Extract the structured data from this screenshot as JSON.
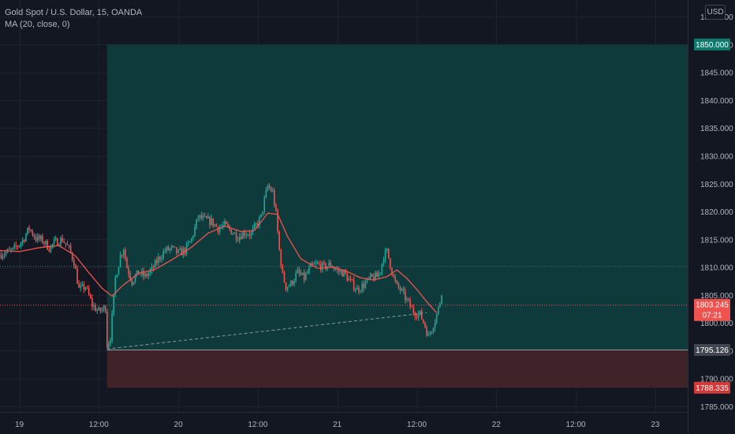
{
  "header": {
    "symbol_line": "Gold Spot / U.S. Dollar, 15, OANDA",
    "indicator_line": "MA (20, close, 0)",
    "currency_button": "USD"
  },
  "colors": {
    "background": "#131722",
    "grid": "#1e222d",
    "up": "#26a69a",
    "down": "#ef5350",
    "ma": "#ef5350",
    "profit_zone": "#0e3a3b",
    "stop_zone": "#3f2329",
    "target_badge": "#0e7a6d",
    "stop_badge": "#d23a3a",
    "last_price_badge": "#ef5350",
    "entry_badge": "#434651"
  },
  "chart_data": {
    "type": "candlestick",
    "symbol": "Gold Spot / U.S. Dollar",
    "interval": "15",
    "source": "OANDA",
    "indicator": "MA (20, close, 0)",
    "y_axis": {
      "range": [
        1784,
        1858
      ],
      "ticks": [
        "1785.000",
        "1790.000",
        "1795.000",
        "1800.000",
        "1805.000",
        "1810.000",
        "1815.000",
        "1820.000",
        "1825.000",
        "1830.000",
        "1835.000",
        "1840.000",
        "1845.000",
        "1850.000",
        "1855.000"
      ]
    },
    "x_axis": {
      "labels": [
        {
          "label": "19",
          "t": 0
        },
        {
          "label": "12:00",
          "t": 48
        },
        {
          "label": "20",
          "t": 96
        },
        {
          "label": "12:00",
          "t": 144
        },
        {
          "label": "21",
          "t": 192
        },
        {
          "label": "12:00",
          "t": 240
        },
        {
          "label": "22",
          "t": 288
        },
        {
          "label": "12:00",
          "t": 336
        },
        {
          "label": "23",
          "t": 384
        }
      ]
    },
    "grid": true,
    "price_range": [
      1795.2,
      1825.3
    ],
    "price_path": [
      [
        -12,
        1812.3
      ],
      [
        -4,
        1813.0
      ],
      [
        2,
        1814.8
      ],
      [
        6,
        1817.0
      ],
      [
        10,
        1815.2
      ],
      [
        14,
        1814.8
      ],
      [
        18,
        1813.5
      ],
      [
        22,
        1814.5
      ],
      [
        26,
        1815.0
      ],
      [
        30,
        1813.3
      ],
      [
        33,
        1811.0
      ],
      [
        36,
        1806.0
      ],
      [
        40,
        1806.5
      ],
      [
        44,
        1803.2
      ],
      [
        48,
        1802.0
      ],
      [
        52,
        1802.8
      ],
      [
        53,
        1796.0
      ],
      [
        55,
        1797.5
      ],
      [
        58,
        1808.0
      ],
      [
        61,
        1812.0
      ],
      [
        63,
        1813.5
      ],
      [
        65,
        1810.0
      ],
      [
        68,
        1807.5
      ],
      [
        72,
        1809.0
      ],
      [
        76,
        1808.3
      ],
      [
        80,
        1809.5
      ],
      [
        84,
        1811.5
      ],
      [
        88,
        1813.0
      ],
      [
        92,
        1813.3
      ],
      [
        96,
        1812.5
      ],
      [
        100,
        1813.0
      ],
      [
        104,
        1815.0
      ],
      [
        108,
        1819.0
      ],
      [
        112,
        1818.5
      ],
      [
        116,
        1818.2
      ],
      [
        120,
        1817.0
      ],
      [
        124,
        1817.5
      ],
      [
        128,
        1816.5
      ],
      [
        132,
        1815.5
      ],
      [
        136,
        1816.2
      ],
      [
        140,
        1816.0
      ],
      [
        143,
        1817.5
      ],
      [
        146,
        1819.0
      ],
      [
        148,
        1822.0
      ],
      [
        150,
        1824.5
      ],
      [
        153,
        1823.5
      ],
      [
        155,
        1819.5
      ],
      [
        157,
        1813.0
      ],
      [
        159,
        1808.5
      ],
      [
        161,
        1806.5
      ],
      [
        164,
        1807.0
      ],
      [
        168,
        1809.0
      ],
      [
        172,
        1808.0
      ],
      [
        176,
        1810.0
      ],
      [
        180,
        1810.5
      ],
      [
        184,
        1810.0
      ],
      [
        188,
        1810.5
      ],
      [
        192,
        1809.3
      ],
      [
        196,
        1809.0
      ],
      [
        200,
        1807.3
      ],
      [
        204,
        1806.0
      ],
      [
        208,
        1806.8
      ],
      [
        212,
        1808.0
      ],
      [
        216,
        1808.3
      ],
      [
        218,
        1809.5
      ],
      [
        220,
        1812.0
      ],
      [
        222,
        1812.8
      ],
      [
        224,
        1810.5
      ],
      [
        226,
        1808.0
      ],
      [
        228,
        1806.5
      ],
      [
        230,
        1806.0
      ],
      [
        234,
        1804.0
      ],
      [
        238,
        1802.0
      ],
      [
        242,
        1801.5
      ],
      [
        245,
        1799.5
      ],
      [
        247,
        1797.5
      ],
      [
        249,
        1799.0
      ],
      [
        251,
        1800.5
      ],
      [
        253,
        1802.5
      ],
      [
        255,
        1805.0
      ]
    ],
    "moving_average": [
      [
        -12,
        1813.0
      ],
      [
        0,
        1812.8
      ],
      [
        12,
        1813.5
      ],
      [
        24,
        1813.9
      ],
      [
        34,
        1812.0
      ],
      [
        42,
        1809.0
      ],
      [
        50,
        1806.2
      ],
      [
        56,
        1804.8
      ],
      [
        62,
        1806.6
      ],
      [
        72,
        1808.9
      ],
      [
        82,
        1809.6
      ],
      [
        92,
        1811.3
      ],
      [
        104,
        1813.6
      ],
      [
        114,
        1816.1
      ],
      [
        124,
        1817.4
      ],
      [
        134,
        1816.4
      ],
      [
        142,
        1816.6
      ],
      [
        150,
        1819.7
      ],
      [
        156,
        1819.5
      ],
      [
        162,
        1815.5
      ],
      [
        170,
        1811.5
      ],
      [
        180,
        1809.8
      ],
      [
        190,
        1810.0
      ],
      [
        198,
        1809.2
      ],
      [
        206,
        1808.1
      ],
      [
        214,
        1807.7
      ],
      [
        222,
        1808.3
      ],
      [
        228,
        1809.5
      ],
      [
        234,
        1808.0
      ],
      [
        240,
        1806.0
      ],
      [
        246,
        1803.8
      ],
      [
        252,
        1801.8
      ]
    ],
    "position": {
      "type": "long",
      "entry": 1795.126,
      "target": 1850.0,
      "stop": 1788.335,
      "start_t": 53,
      "end_t": 404,
      "target_label": "1850.000",
      "entry_label": "1795.126",
      "stop_label": "1788.335"
    },
    "trend_line": {
      "from": [
        53,
        1795.3
      ],
      "to": [
        246,
        1801.8
      ],
      "style": "dashed"
    },
    "reference_lines": [
      {
        "price": 1810.2,
        "style": "dotted",
        "color": "#4f6e6a"
      },
      {
        "price": 1803.245,
        "style": "dotted",
        "color": "#ef5350"
      }
    ],
    "last_price": {
      "price": 1803.245,
      "label": "1803.245",
      "countdown": "07:21"
    }
  }
}
